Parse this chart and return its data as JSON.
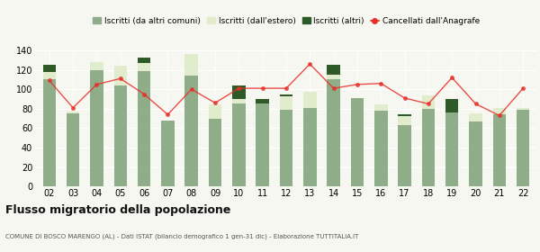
{
  "years": [
    "02",
    "03",
    "04",
    "05",
    "06",
    "07",
    "08",
    "09",
    "10",
    "11",
    "12",
    "13",
    "14",
    "15",
    "16",
    "17",
    "18",
    "19",
    "20",
    "21",
    "22"
  ],
  "iscritti_comuni": [
    110,
    75,
    120,
    104,
    119,
    68,
    114,
    70,
    85,
    85,
    79,
    81,
    110,
    91,
    78,
    63,
    80,
    76,
    67,
    74,
    79
  ],
  "iscritti_estero": [
    8,
    2,
    8,
    20,
    8,
    0,
    22,
    14,
    5,
    0,
    14,
    16,
    5,
    0,
    6,
    9,
    14,
    0,
    8,
    7,
    2
  ],
  "iscritti_altri": [
    7,
    0,
    0,
    0,
    6,
    0,
    0,
    0,
    14,
    5,
    2,
    0,
    10,
    0,
    0,
    2,
    0,
    14,
    0,
    0,
    0
  ],
  "cancellati": [
    109,
    81,
    105,
    111,
    95,
    74,
    100,
    86,
    101,
    101,
    101,
    126,
    101,
    105,
    106,
    91,
    85,
    112,
    85,
    73,
    101
  ],
  "color_comuni": "#8fad88",
  "color_estero": "#e0eccc",
  "color_altri": "#2d5a27",
  "color_cancellati": "#e8302a",
  "ylim": [
    0,
    140
  ],
  "yticks": [
    0,
    20,
    40,
    60,
    80,
    100,
    120,
    140
  ],
  "title": "Flusso migratorio della popolazione",
  "subtitle": "COMUNE DI BOSCO MARENGO (AL) - Dati ISTAT (bilancio demografico 1 gen-31 dic) - Elaborazione TUTTITALIA.IT",
  "legend_labels": [
    "Iscritti (da altri comuni)",
    "Iscritti (dall'estero)",
    "Iscritti (altri)",
    "Cancellati dall'Anagrafe"
  ],
  "bg_color": "#f7f7f2"
}
